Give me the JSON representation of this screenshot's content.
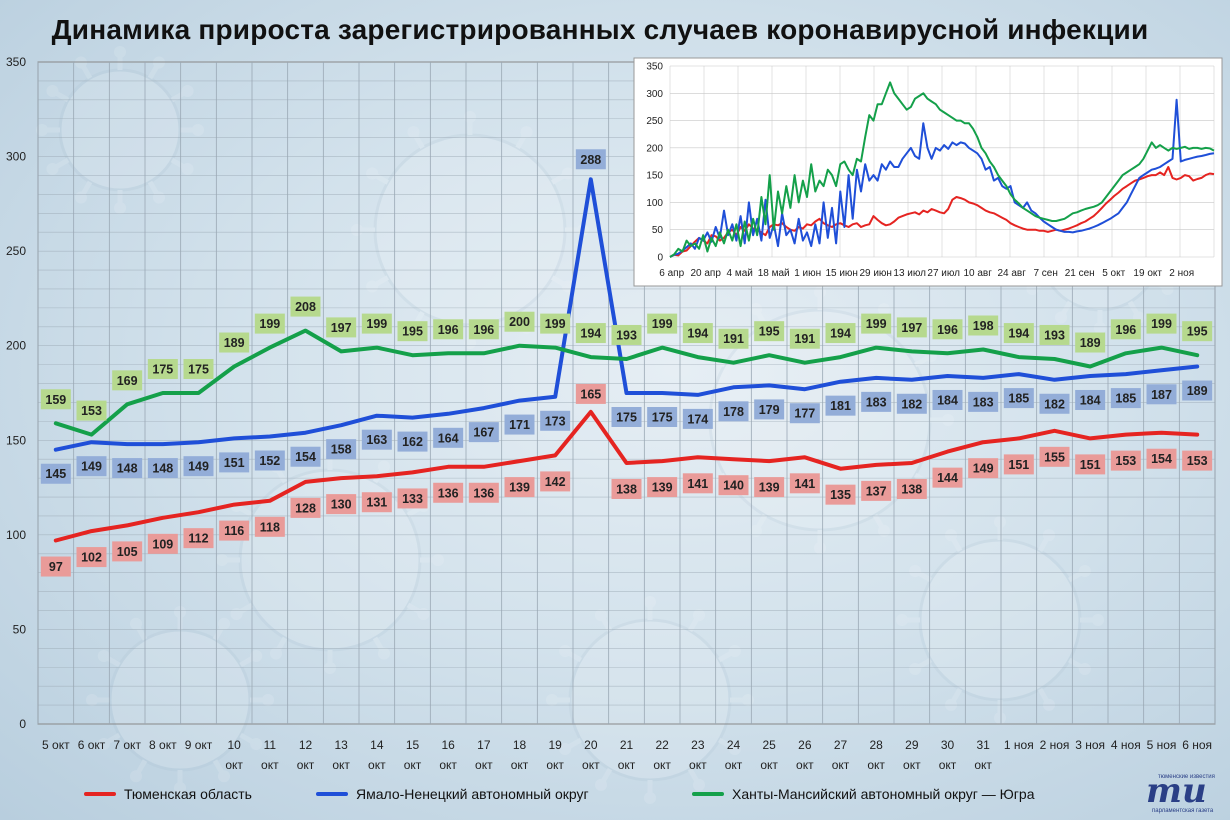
{
  "title": "Динамика прироста зарегистрированных случаев коронавирусной инфекции",
  "colors": {
    "tyumen": "#e52421",
    "yanao": "#1f4fd8",
    "hmao": "#14a04a",
    "label_tyumen": "#e99b99",
    "label_yanao": "#93add8",
    "label_hmao": "#b6d98e"
  },
  "chart_data": [
    {
      "type": "line",
      "ylim": [
        0,
        350
      ],
      "yticks": [
        0,
        50,
        100,
        150,
        200,
        250,
        300,
        350
      ],
      "grid": "both",
      "x_tick_labels": [
        [
          "5 окт"
        ],
        [
          "6 окт"
        ],
        [
          "7 окт"
        ],
        [
          "8 окт"
        ],
        [
          "9 окт"
        ],
        [
          "10",
          "окт"
        ],
        [
          "11",
          "окт"
        ],
        [
          "12",
          "окт"
        ],
        [
          "13",
          "окт"
        ],
        [
          "14",
          "окт"
        ],
        [
          "15",
          "окт"
        ],
        [
          "16",
          "окт"
        ],
        [
          "17",
          "окт"
        ],
        [
          "18",
          "окт"
        ],
        [
          "19",
          "окт"
        ],
        [
          "20",
          "окт"
        ],
        [
          "21",
          "окт"
        ],
        [
          "22",
          "окт"
        ],
        [
          "23",
          "окт"
        ],
        [
          "24",
          "окт"
        ],
        [
          "25",
          "окт"
        ],
        [
          "26",
          "окт"
        ],
        [
          "27",
          "окт"
        ],
        [
          "28",
          "окт"
        ],
        [
          "29",
          "окт"
        ],
        [
          "30",
          "окт"
        ],
        [
          "31",
          "окт"
        ],
        [
          "1 ноя"
        ],
        [
          "2 ноя"
        ],
        [
          "3 ноя"
        ],
        [
          "4 ноя"
        ],
        [
          "5 ноя"
        ],
        [
          "6 ноя"
        ]
      ],
      "series": [
        {
          "name": "Тюменская область",
          "key": "tyumen",
          "values": [
            97,
            102,
            105,
            109,
            112,
            116,
            118,
            128,
            130,
            131,
            133,
            136,
            136,
            139,
            142,
            165,
            138,
            139,
            141,
            140,
            139,
            141,
            135,
            137,
            138,
            144,
            149,
            151,
            155,
            151,
            153,
            154,
            153
          ]
        },
        {
          "name": "Ямало-Ненецкий автономный округ",
          "key": "yanao",
          "values": [
            145,
            149,
            148,
            148,
            149,
            151,
            152,
            154,
            158,
            163,
            162,
            164,
            167,
            171,
            173,
            288,
            175,
            175,
            174,
            178,
            179,
            177,
            181,
            183,
            182,
            184,
            183,
            185,
            182,
            184,
            185,
            187,
            189
          ]
        },
        {
          "name": "Ханты-Мансийский автономный округ — Югра",
          "key": "hmao",
          "values": [
            159,
            153,
            169,
            175,
            175,
            189,
            199,
            208,
            197,
            199,
            195,
            196,
            196,
            200,
            199,
            194,
            193,
            199,
            194,
            191,
            195,
            191,
            194,
            199,
            197,
            196,
            198,
            194,
            193,
            189,
            196,
            199,
            195
          ]
        }
      ],
      "legend": "bottom"
    },
    {
      "type": "line",
      "ylim": [
        0,
        350
      ],
      "yticks": [
        0,
        50,
        100,
        150,
        200,
        250,
        300,
        350
      ],
      "x_tick_labels": [
        "6 апр",
        "20 апр",
        "4 май",
        "18 май",
        "1 июн",
        "15 июн",
        "29 июн",
        "13 июл",
        "27 июл",
        "10 авг",
        "24 авг",
        "7 сен",
        "21 сен",
        "5 окт",
        "19 окт",
        "2 ноя"
      ],
      "grid": "both",
      "series": [
        {
          "key": "tyumen",
          "values": [
            0,
            4,
            3,
            10,
            12,
            20,
            28,
            35,
            30,
            25,
            40,
            38,
            30,
            35,
            45,
            50,
            40,
            55,
            48,
            60,
            52,
            50,
            45,
            40,
            55,
            60,
            58,
            62,
            55,
            50,
            48,
            55,
            52,
            60,
            58,
            65,
            70,
            62,
            58,
            55,
            60,
            62,
            58,
            55,
            60,
            62,
            55,
            58,
            60,
            75,
            68,
            62,
            58,
            60,
            65,
            72,
            75,
            78,
            80,
            82,
            78,
            85,
            82,
            88,
            85,
            82,
            80,
            88,
            105,
            110,
            108,
            105,
            100,
            98,
            95,
            90,
            85,
            82,
            80,
            76,
            72,
            68,
            62,
            58,
            55,
            52,
            50,
            50,
            50,
            48,
            48,
            46,
            48,
            50,
            48,
            50,
            52,
            55,
            58,
            62,
            65,
            70,
            75,
            82,
            90,
            98,
            105,
            112,
            118,
            125,
            130,
            135,
            140,
            142,
            145,
            148,
            150,
            150,
            155,
            150,
            165,
            145,
            142,
            145,
            150,
            148,
            140,
            143,
            145,
            150,
            153,
            152
          ]
        },
        {
          "key": "yanao",
          "values": [
            0,
            4,
            6,
            12,
            18,
            25,
            15,
            35,
            30,
            45,
            28,
            55,
            35,
            85,
            40,
            60,
            30,
            75,
            25,
            100,
            40,
            70,
            30,
            105,
            35,
            60,
            20,
            80,
            40,
            50,
            25,
            70,
            30,
            45,
            20,
            60,
            25,
            100,
            35,
            90,
            25,
            120,
            55,
            150,
            70,
            160,
            120,
            170,
            140,
            150,
            140,
            170,
            160,
            175,
            165,
            165,
            180,
            190,
            200,
            185,
            180,
            245,
            200,
            180,
            200,
            195,
            205,
            198,
            210,
            205,
            210,
            208,
            200,
            195,
            190,
            180,
            160,
            165,
            140,
            145,
            130,
            125,
            130,
            100,
            95,
            90,
            100,
            85,
            80,
            72,
            65,
            60,
            55,
            50,
            48,
            46,
            46,
            45,
            47,
            48,
            50,
            52,
            55,
            58,
            62,
            66,
            70,
            75,
            80,
            90,
            100,
            115,
            130,
            145,
            150,
            155,
            160,
            162,
            165,
            170,
            175,
            180,
            288,
            175,
            178,
            180,
            182,
            184,
            185,
            187,
            189,
            190
          ]
        },
        {
          "key": "hmao",
          "values": [
            0,
            5,
            15,
            10,
            30,
            20,
            25,
            15,
            40,
            10,
            35,
            20,
            45,
            25,
            50,
            30,
            60,
            20,
            65,
            30,
            70,
            40,
            110,
            60,
            150,
            50,
            120,
            80,
            130,
            90,
            150,
            100,
            140,
            110,
            170,
            120,
            140,
            130,
            160,
            150,
            130,
            170,
            175,
            160,
            150,
            180,
            175,
            220,
            260,
            250,
            280,
            280,
            300,
            320,
            300,
            290,
            280,
            270,
            275,
            290,
            295,
            300,
            290,
            285,
            280,
            270,
            265,
            260,
            255,
            250,
            250,
            245,
            245,
            235,
            220,
            200,
            190,
            175,
            165,
            150,
            140,
            130,
            115,
            105,
            98,
            90,
            85,
            80,
            75,
            72,
            70,
            68,
            66,
            66,
            68,
            70,
            75,
            80,
            82,
            85,
            88,
            90,
            92,
            95,
            100,
            110,
            120,
            130,
            140,
            150,
            155,
            160,
            165,
            170,
            180,
            195,
            210,
            200,
            205,
            200,
            195,
            200,
            198,
            200,
            202,
            198,
            200,
            200,
            198,
            200,
            199,
            195
          ]
        }
      ]
    }
  ],
  "legend": {
    "tyumen": "Тюменская область",
    "yanao": "Ямало-Ненецкий автономный округ",
    "hmao": "Ханты-Мансийский автономный округ — Югра"
  },
  "logo": {
    "mark": "mu",
    "line1": "тюменские известия",
    "line2": "парламентская газета"
  }
}
